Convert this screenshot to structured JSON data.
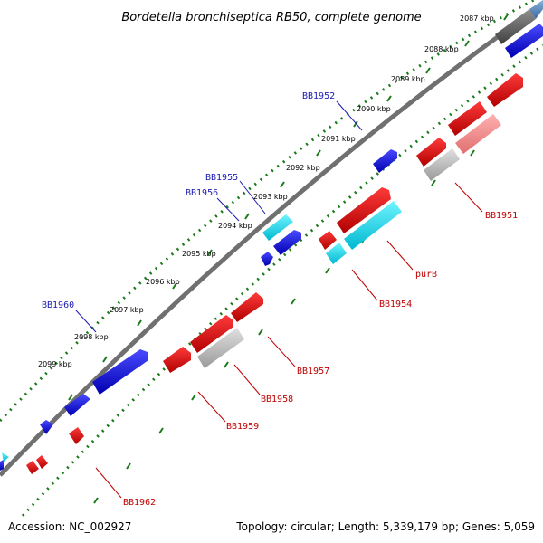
{
  "title": "Bordetella bronchiseptica RB50, complete genome",
  "footer": {
    "accession": "Accession: NC_002927",
    "summary": "Topology: circular; Length: 5,339,179 bp; Genes: 5,059"
  },
  "ticks": [
    "2087 kbp",
    "2088 kbp",
    "2089 kbp",
    "2090 kbp",
    "2091 kbp",
    "2092 kbp",
    "2093 kbp",
    "2094 kbp",
    "2095 kbp",
    "2096 kbp",
    "2097 kbp",
    "2098 kbp",
    "2099 kbp"
  ],
  "gene_labels": [
    {
      "name": "BB1952",
      "strand": "forward"
    },
    {
      "name": "BB1955",
      "strand": "forward"
    },
    {
      "name": "BB1956",
      "strand": "forward"
    },
    {
      "name": "BB1960",
      "strand": "forward"
    },
    {
      "name": "BB1951",
      "strand": "reverse"
    },
    {
      "name": "purB",
      "strand": "reverse"
    },
    {
      "name": "BB1954",
      "strand": "reverse"
    },
    {
      "name": "BB1957",
      "strand": "reverse"
    },
    {
      "name": "BB1958",
      "strand": "reverse"
    },
    {
      "name": "BB1959",
      "strand": "reverse"
    },
    {
      "name": "BB1962",
      "strand": "reverse"
    }
  ],
  "colors": {
    "backbone": "#707070",
    "forward_gene": "#1010d0",
    "reverse_gene": "#e01010",
    "rna_gene": "#10d0e0",
    "pseudo_gene": "#b0b0b0",
    "tick_dots": "#1a7a1a",
    "label_forward": "#1a1ab0",
    "label_reverse": "#c00000"
  }
}
